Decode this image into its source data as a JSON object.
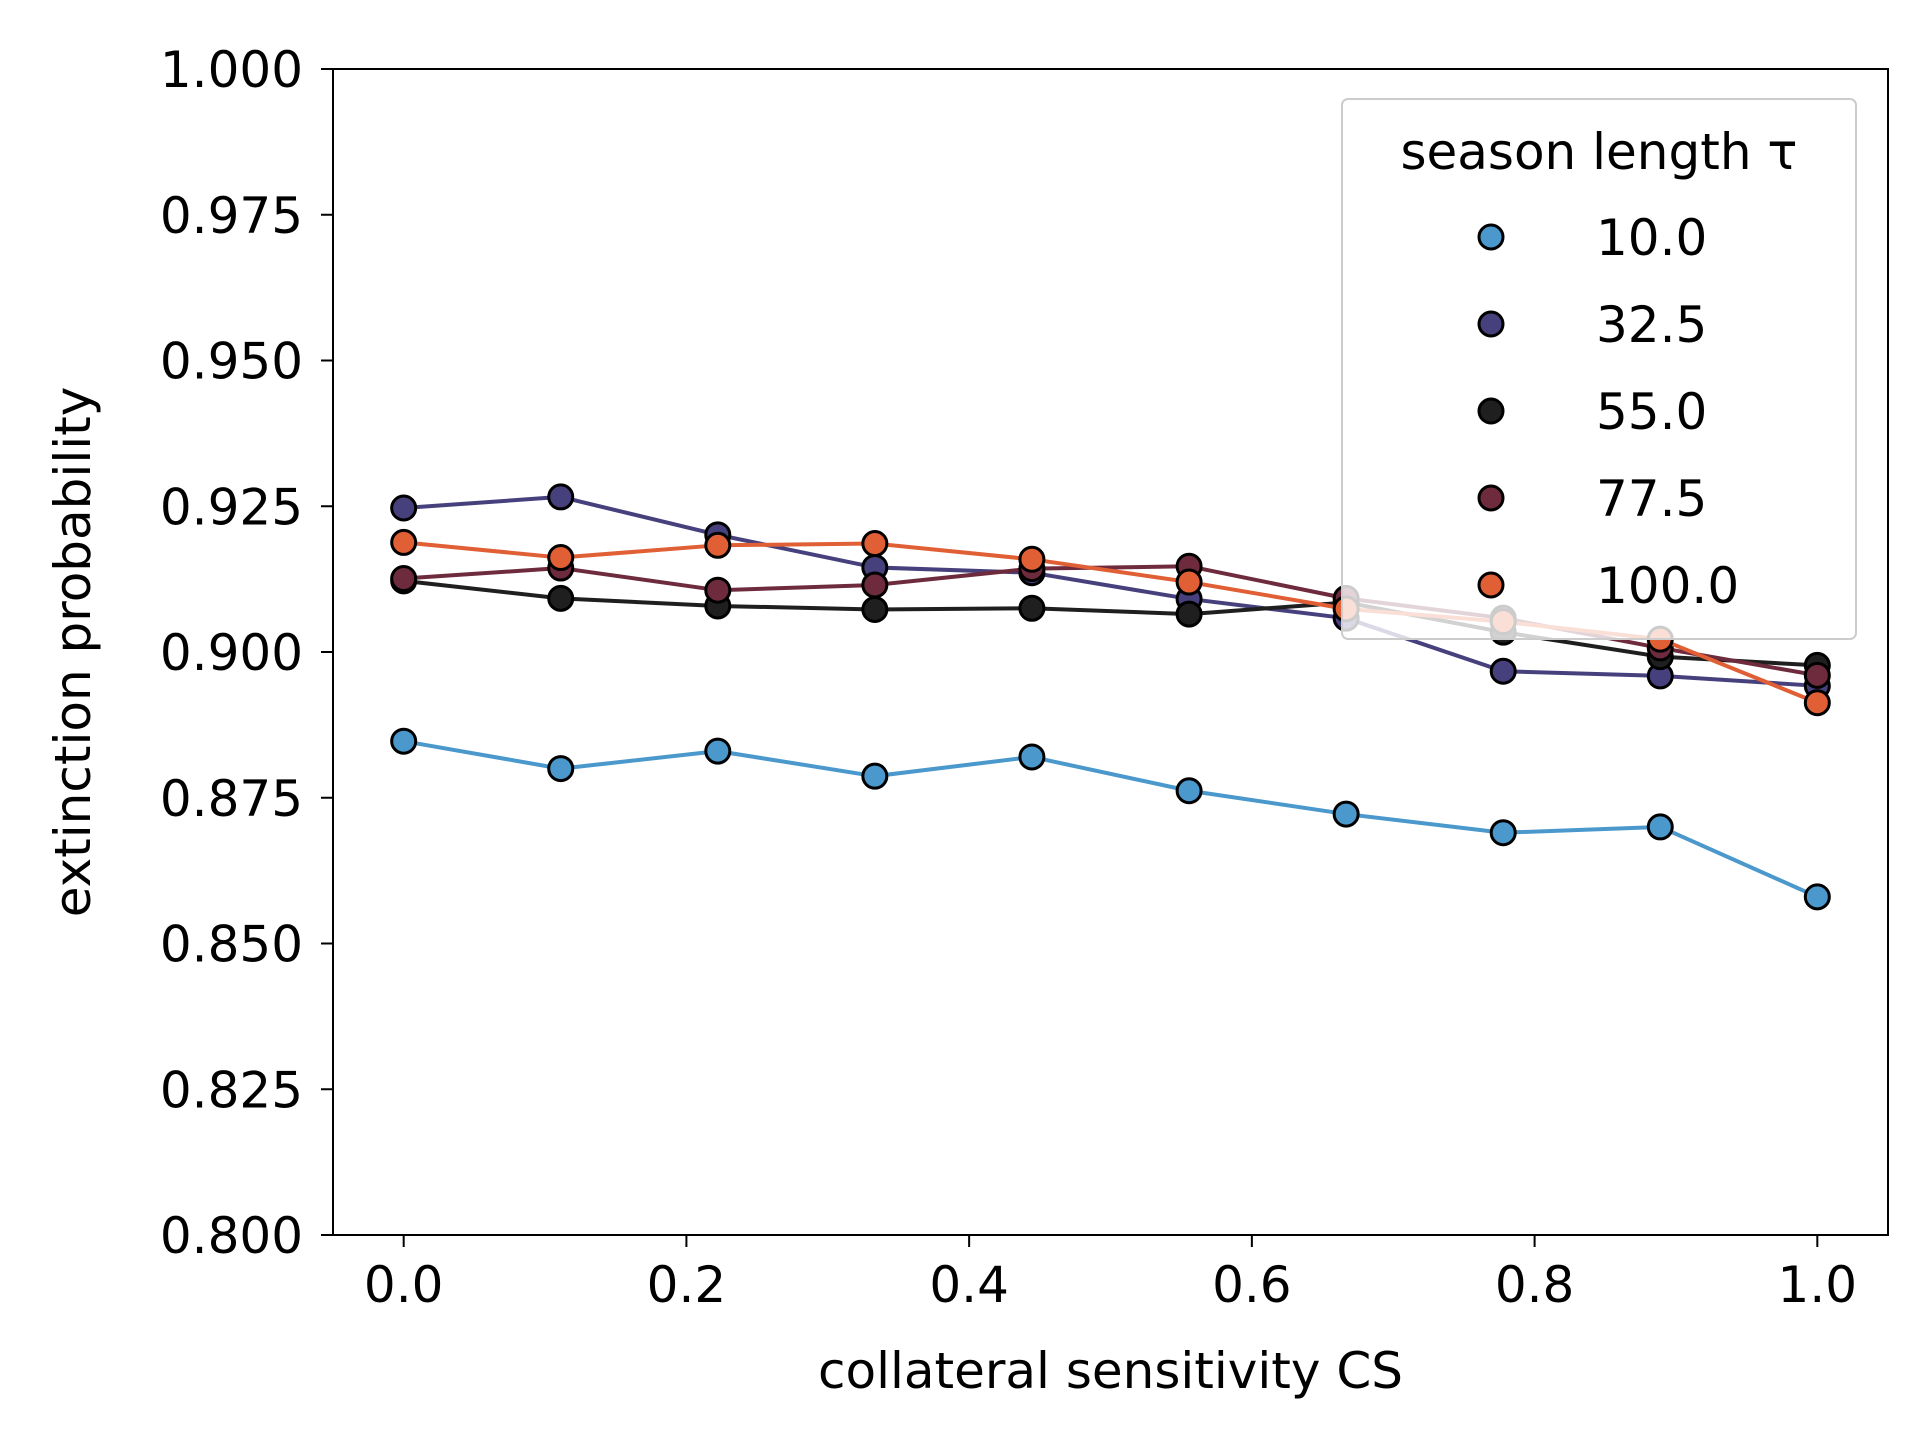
{
  "chart_data": {
    "type": "line",
    "xlabel": "collateral sensitivity CS",
    "ylabel": "extinction probability",
    "xlim": [
      -0.05,
      1.05
    ],
    "ylim": [
      0.8,
      1.0
    ],
    "grid": false,
    "xticks": [
      0.0,
      0.2,
      0.4,
      0.6,
      0.8,
      1.0
    ],
    "xtick_labels": [
      "0.0",
      "0.2",
      "0.4",
      "0.6",
      "0.8",
      "1.0"
    ],
    "yticks": [
      0.8,
      0.825,
      0.85,
      0.875,
      0.9,
      0.925,
      0.95,
      0.975,
      1.0
    ],
    "ytick_labels": [
      "0.800",
      "0.825",
      "0.850",
      "0.875",
      "0.900",
      "0.925",
      "0.950",
      "0.975",
      "1.000"
    ],
    "legend": {
      "title": "season length τ",
      "placement": "top-right"
    },
    "x": [
      0.0,
      0.1111,
      0.2222,
      0.3333,
      0.4444,
      0.5556,
      0.6667,
      0.7778,
      0.8889,
      1.0
    ],
    "series": [
      {
        "name": "10.0",
        "color": "#4a98cc",
        "values": [
          0.8847,
          0.88,
          0.883,
          0.8787,
          0.882,
          0.8762,
          0.8722,
          0.869,
          0.87,
          0.858
        ]
      },
      {
        "name": "32.5",
        "color": "#46407d",
        "values": [
          0.9247,
          0.9266,
          0.9201,
          0.9145,
          0.9136,
          0.9091,
          0.9058,
          0.8967,
          0.8959,
          0.8942
        ]
      },
      {
        "name": "55.0",
        "color": "#1f1f1f",
        "values": [
          0.9122,
          0.9092,
          0.9079,
          0.9073,
          0.9075,
          0.9065,
          0.9085,
          0.9034,
          0.8992,
          0.8977
        ]
      },
      {
        "name": "77.5",
        "color": "#6e2b3e",
        "values": [
          0.9126,
          0.9144,
          0.9106,
          0.9115,
          0.9143,
          0.9147,
          0.9092,
          0.9058,
          0.9007,
          0.896
        ]
      },
      {
        "name": "100.0",
        "color": "#e05f35",
        "values": [
          0.9188,
          0.9162,
          0.9183,
          0.9186,
          0.9159,
          0.912,
          0.9074,
          0.9052,
          0.9022,
          0.8913
        ]
      }
    ]
  }
}
